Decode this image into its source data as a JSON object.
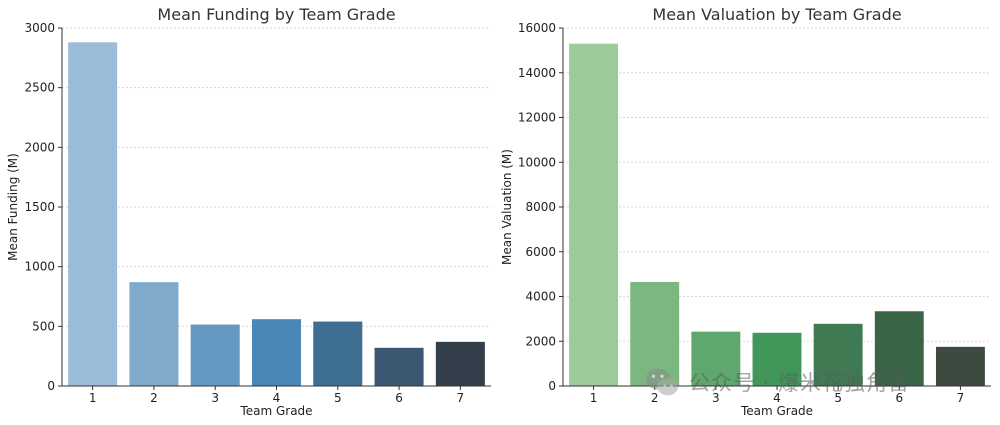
{
  "chart_data": [
    {
      "type": "bar",
      "title": "Mean Funding by Team Grade",
      "xlabel": "Team Grade",
      "ylabel": "Mean Funding (M)",
      "categories": [
        "1",
        "2",
        "3",
        "4",
        "5",
        "6",
        "7"
      ],
      "values": [
        2880,
        870,
        515,
        560,
        540,
        320,
        370
      ],
      "ylim": [
        0,
        3000
      ],
      "yticks": [
        0,
        500,
        1000,
        1500,
        2000,
        2500,
        3000
      ],
      "grid": "horizontal",
      "colors": [
        "#9bbcd9",
        "#80aacc",
        "#6699c2",
        "#4a87b7",
        "#3f6e93",
        "#3a5872",
        "#343f4c"
      ]
    },
    {
      "type": "bar",
      "title": "Mean Valuation by Team Grade",
      "xlabel": "Team Grade",
      "ylabel": "Mean Valuation (M)",
      "categories": [
        "1",
        "2",
        "3",
        "4",
        "5",
        "6",
        "7"
      ],
      "values": [
        15300,
        4650,
        2430,
        2380,
        2780,
        3340,
        1750
      ],
      "ylim": [
        0,
        16000
      ],
      "yticks": [
        0,
        2000,
        4000,
        6000,
        8000,
        10000,
        12000,
        14000,
        16000
      ],
      "grid": "horizontal",
      "colors": [
        "#9ccb99",
        "#7cb780",
        "#5ea86d",
        "#41975a",
        "#3f7a52",
        "#3a6446",
        "#3c4a3f"
      ]
    }
  ],
  "watermark": {
    "text": "公众号 · 爆米花独角兽",
    "icon": "wechat-icon"
  }
}
